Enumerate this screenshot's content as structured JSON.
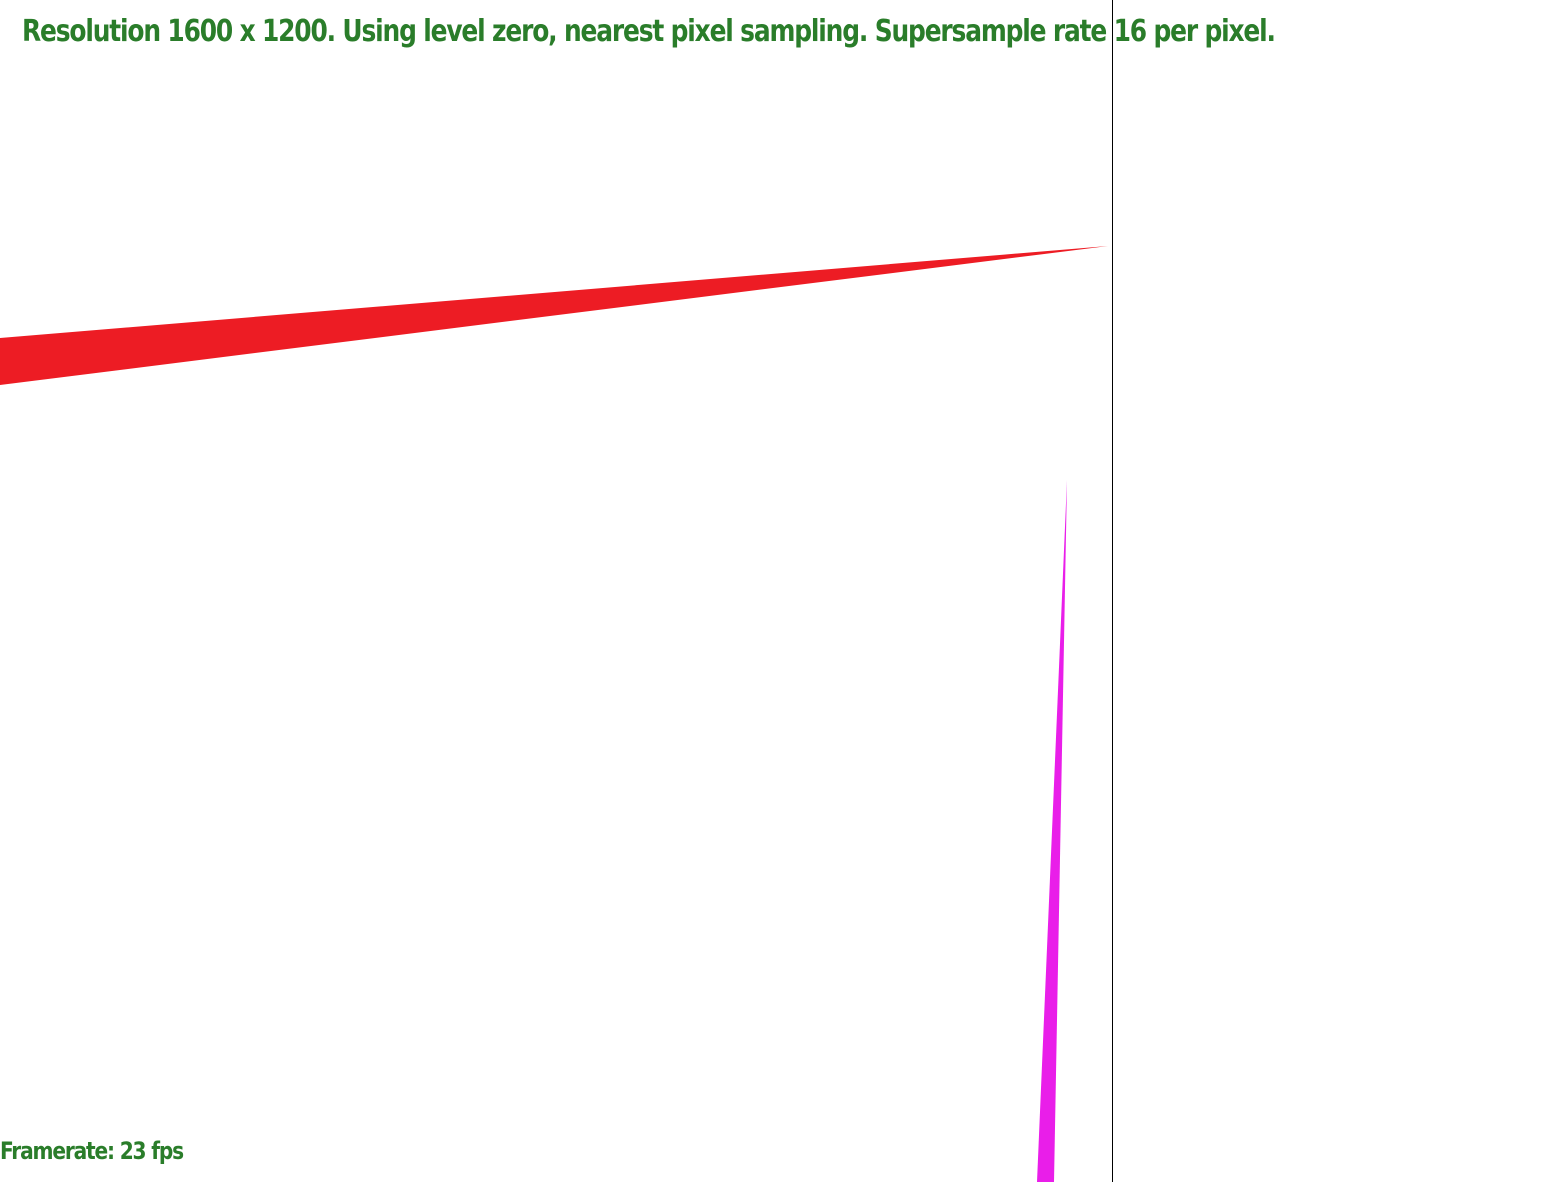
{
  "hud": {
    "status_text": "Resolution 1600 x 1200. Using level zero, nearest pixel sampling. Supersample rate 16 per pixel.",
    "framerate_text": "Framerate: 23 fps",
    "text_color": "#2a7d2a"
  },
  "scene": {
    "background_color": "#ffffff",
    "shapes": [
      {
        "name": "red-triangle",
        "color": "#ed1c24"
      },
      {
        "name": "magenta-triangle",
        "color": "#e91ee9"
      }
    ],
    "divider_color": "#000000"
  }
}
